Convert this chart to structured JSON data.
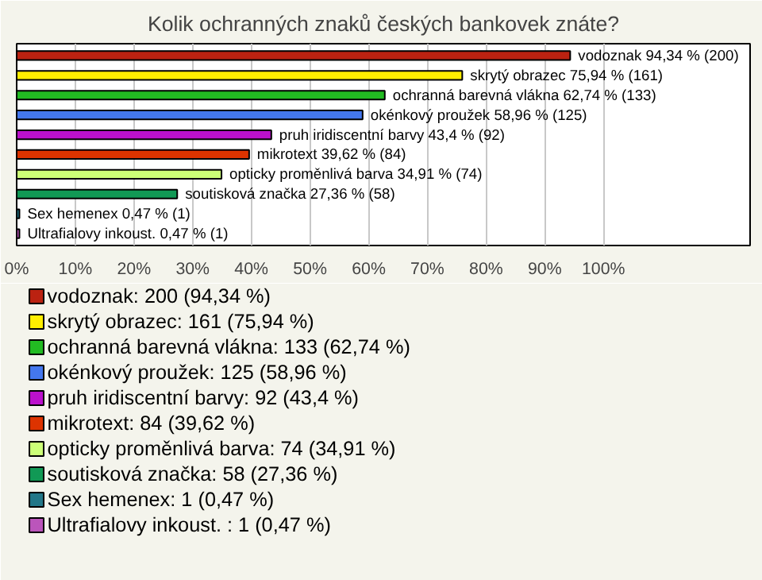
{
  "chart_data": {
    "type": "bar",
    "orientation": "horizontal",
    "title": "Kolik ochranných znaků českých bankovek znáte?",
    "categories": [
      null,
      null,
      null,
      null,
      null,
      null,
      null,
      null,
      null,
      null
    ],
    "xlim": [
      0,
      125
    ],
    "xticks": [
      {
        "value": 0,
        "label": "0%"
      },
      {
        "value": 10,
        "label": "10%"
      },
      {
        "value": 20,
        "label": "20%"
      },
      {
        "value": 30,
        "label": "30%"
      },
      {
        "value": 40,
        "label": "40%"
      },
      {
        "value": 50,
        "label": "50%"
      },
      {
        "value": 60,
        "label": "60%"
      },
      {
        "value": 70,
        "label": "70%"
      },
      {
        "value": 80,
        "label": "80%"
      },
      {
        "value": 90,
        "label": "90%"
      },
      {
        "value": 100,
        "label": "100%"
      }
    ],
    "grid": "x",
    "legend": "bottom",
    "series": [
      {
        "name": "vodoznak: 200 (94,34 %)",
        "color": "#bb2211",
        "values": [
          94.34,
          null,
          null,
          null,
          null,
          null,
          null,
          null,
          null,
          null
        ],
        "value_labels": [
          "vodoznak 94,34 % (200)",
          null,
          null,
          null,
          null,
          null,
          null,
          null,
          null,
          null
        ]
      },
      {
        "name": "skrytý obrazec: 161 (75,94 %)",
        "color": "#ffee00",
        "values": [
          null,
          75.94,
          null,
          null,
          null,
          null,
          null,
          null,
          null,
          null
        ],
        "value_labels": [
          null,
          "skrytý obrazec 75,94 % (161)",
          null,
          null,
          null,
          null,
          null,
          null,
          null,
          null
        ]
      },
      {
        "name": "ochranná barevná vlákna: 133 (62,74 %)",
        "color": "#22bb22",
        "values": [
          null,
          null,
          62.74,
          null,
          null,
          null,
          null,
          null,
          null,
          null
        ],
        "value_labels": [
          null,
          null,
          "ochranná barevná vlákna 62,74 % (133)",
          null,
          null,
          null,
          null,
          null,
          null,
          null
        ]
      },
      {
        "name": "okénkový proužek: 125 (58,96 %)",
        "color": "#4477ee",
        "values": [
          null,
          null,
          null,
          58.96,
          null,
          null,
          null,
          null,
          null,
          null
        ],
        "value_labels": [
          null,
          null,
          null,
          "okénkový proužek 58,96 % (125)",
          null,
          null,
          null,
          null,
          null,
          null
        ]
      },
      {
        "name": "pruh iridiscentní barvy: 92 (43,4 %)",
        "color": "#bb11cc",
        "values": [
          null,
          null,
          null,
          null,
          43.4,
          null,
          null,
          null,
          null,
          null
        ],
        "value_labels": [
          null,
          null,
          null,
          null,
          "pruh iridiscentní barvy 43,4 % (92)",
          null,
          null,
          null,
          null,
          null
        ]
      },
      {
        "name": "mikrotext: 84 (39,62 %)",
        "color": "#dd3300",
        "values": [
          null,
          null,
          null,
          null,
          null,
          39.62,
          null,
          null,
          null,
          null
        ],
        "value_labels": [
          null,
          null,
          null,
          null,
          null,
          "mikrotext 39,62 % (84)",
          null,
          null,
          null,
          null
        ]
      },
      {
        "name": "opticky proměnlivá barva: 74 (34,91 %)",
        "color": "#ccff77",
        "values": [
          null,
          null,
          null,
          null,
          null,
          null,
          34.91,
          null,
          null,
          null
        ],
        "value_labels": [
          null,
          null,
          null,
          null,
          null,
          null,
          "opticky proměnlivá barva 34,91 % (74)",
          null,
          null,
          null
        ]
      },
      {
        "name": "soutisková značka: 58 (27,36 %)",
        "color": "#119955",
        "values": [
          null,
          null,
          null,
          null,
          null,
          null,
          null,
          27.36,
          null,
          null
        ],
        "value_labels": [
          null,
          null,
          null,
          null,
          null,
          null,
          null,
          "soutisková značka 27,36 % (58)",
          null,
          null
        ]
      },
      {
        "name": "Sex hemenex: 1 (0,47 %)",
        "color": "#227788",
        "values": [
          null,
          null,
          null,
          null,
          null,
          null,
          null,
          null,
          0.47,
          null
        ],
        "value_labels": [
          null,
          null,
          null,
          null,
          null,
          null,
          null,
          null,
          "Sex hemenex 0,47 % (1)",
          null
        ]
      },
      {
        "name": "Ultrafialovy inkoust. : 1 (0,47 %)",
        "color": "#bb55bb",
        "values": [
          null,
          null,
          null,
          null,
          null,
          null,
          null,
          null,
          null,
          0.47
        ],
        "value_labels": [
          null,
          null,
          null,
          null,
          null,
          null,
          null,
          null,
          null,
          "Ultrafialovy inkoust.  0,47 % (1)"
        ]
      }
    ]
  }
}
